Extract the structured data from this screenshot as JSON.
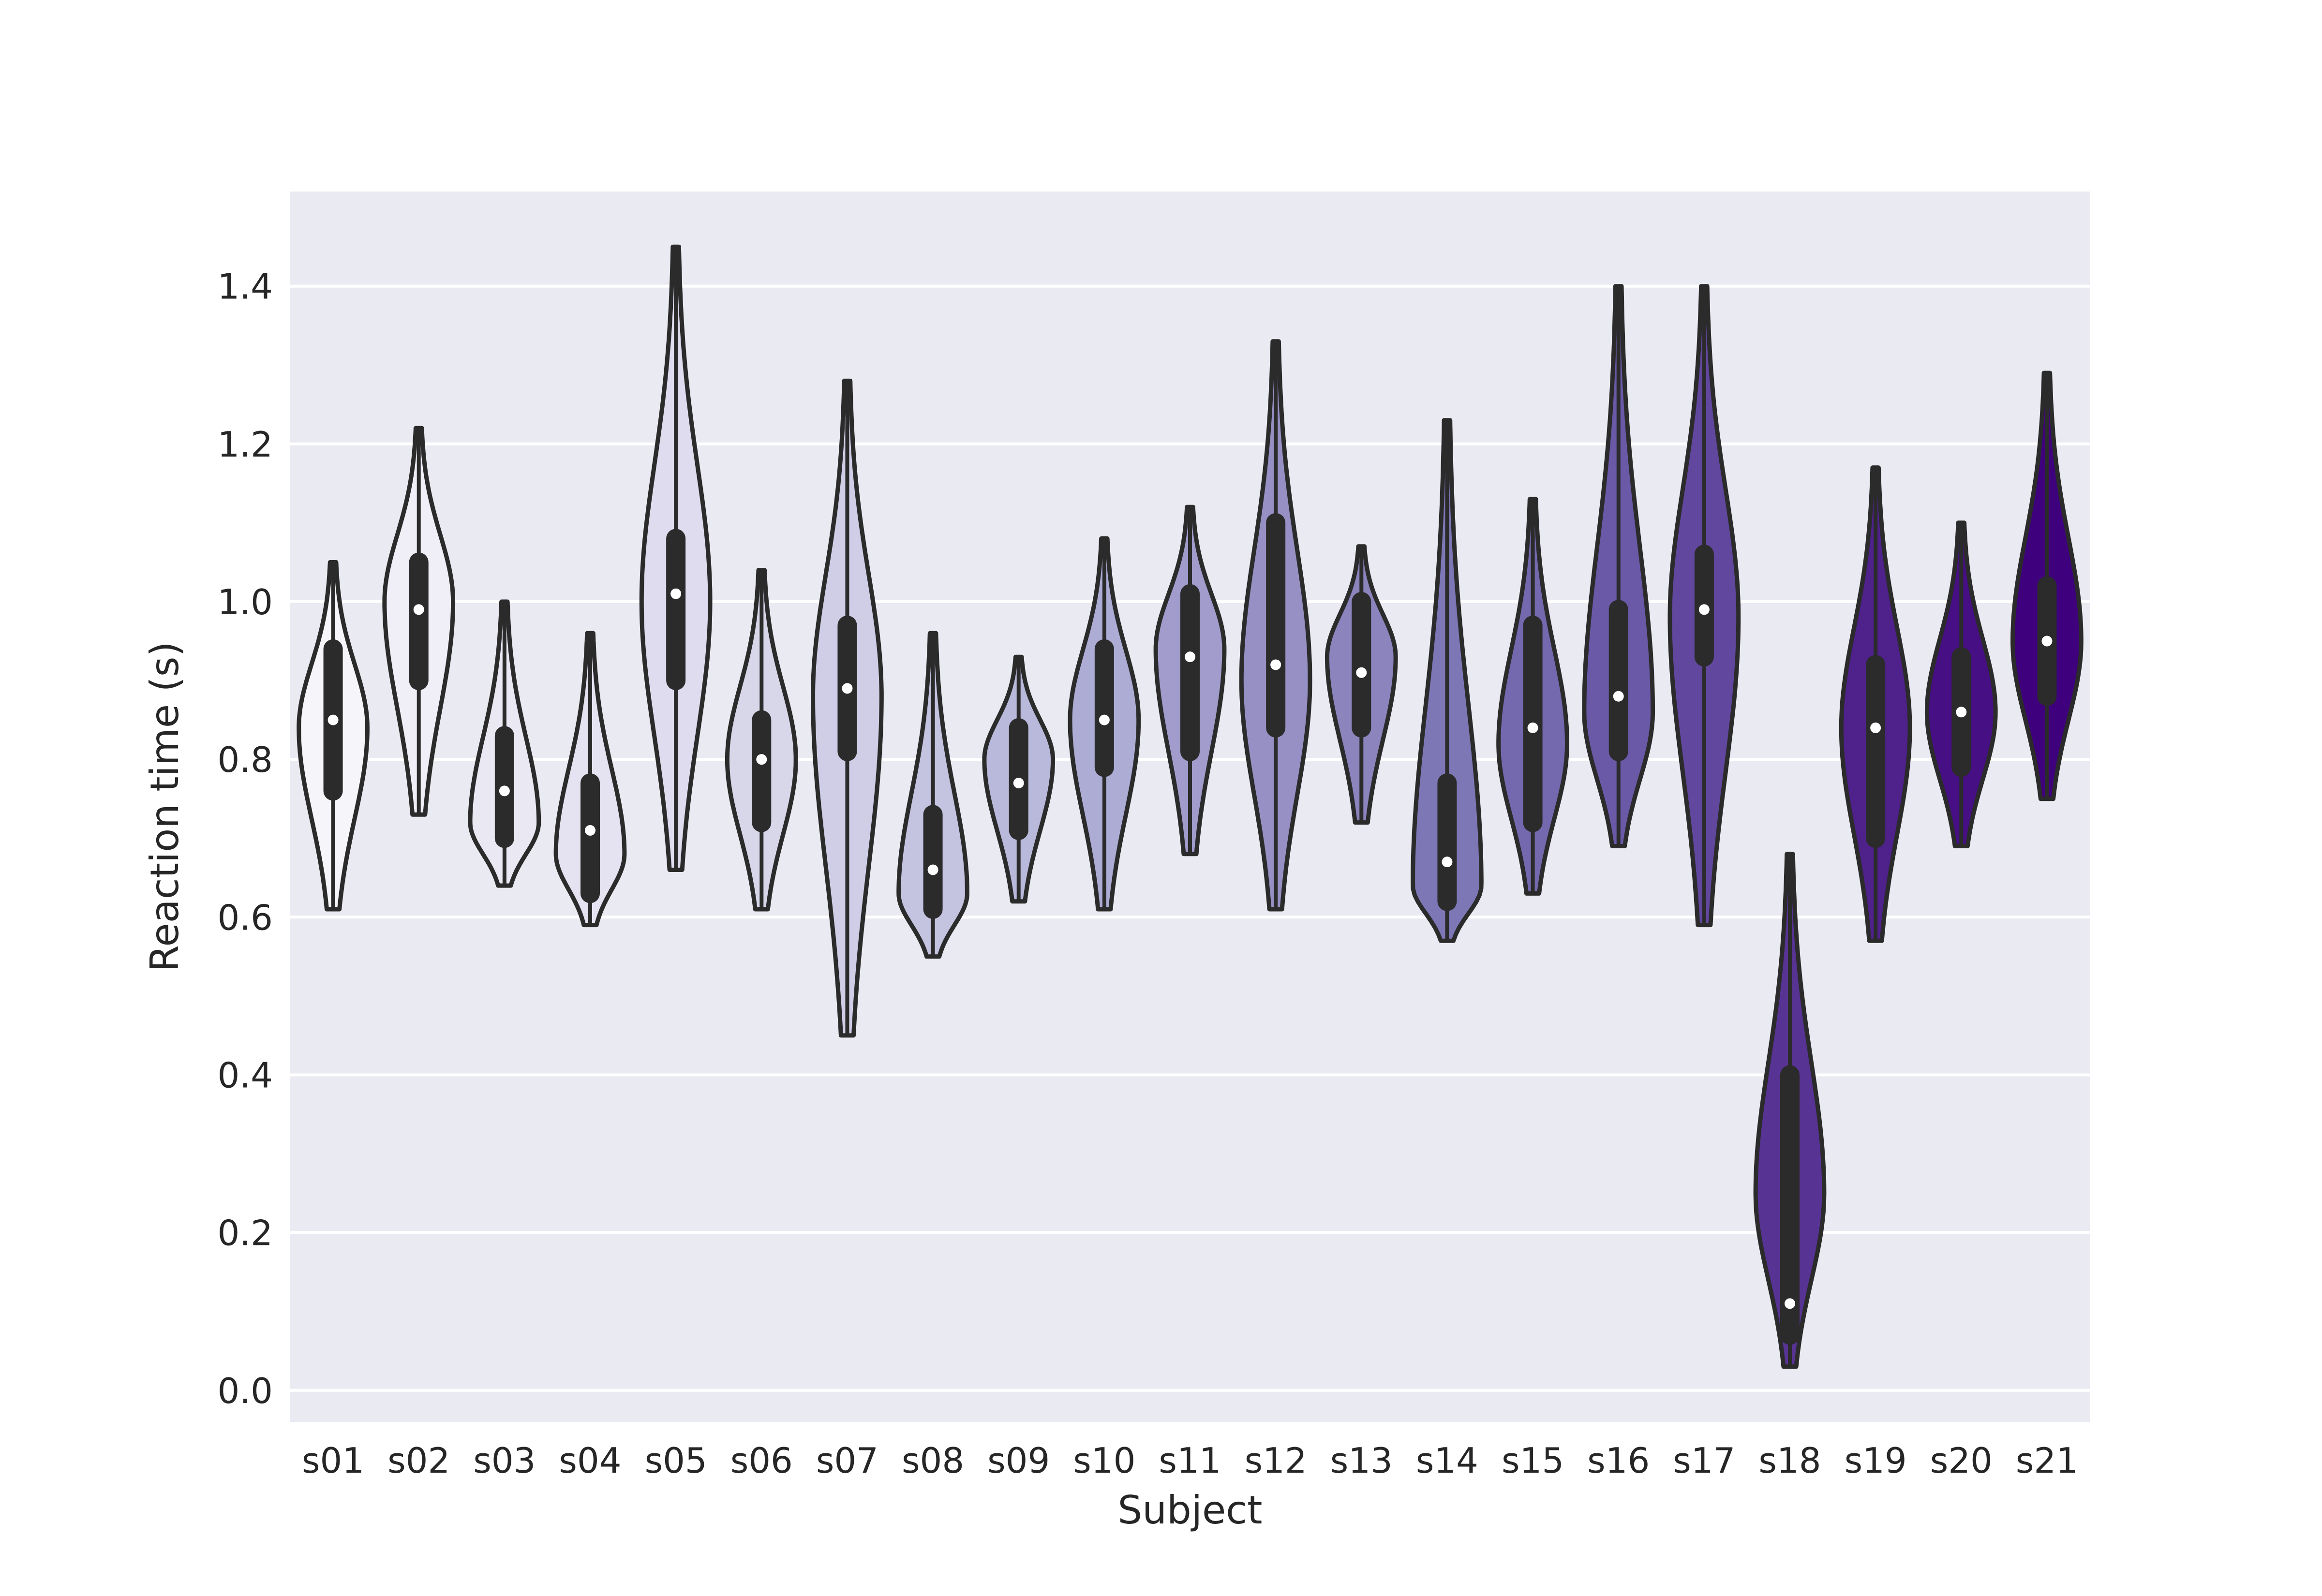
{
  "chart_data": {
    "type": "violin",
    "title": "",
    "xlabel": "Subject",
    "ylabel": "Reaction time (s)",
    "ylim": [
      -0.04,
      1.52
    ],
    "yticks": [
      "0.0",
      "0.2",
      "0.4",
      "0.6",
      "0.8",
      "1.0",
      "1.2",
      "1.4"
    ],
    "grid": true,
    "categories": [
      "s01",
      "s02",
      "s03",
      "s04",
      "s05",
      "s06",
      "s07",
      "s08",
      "s09",
      "s10",
      "s11",
      "s12",
      "s13",
      "s14",
      "s15",
      "s16",
      "s17",
      "s18",
      "s19",
      "s20",
      "s21"
    ],
    "colors": [
      "#f6f5fa",
      "#f0eef7",
      "#eae8f3",
      "#e5e2f1",
      "#dedcee",
      "#d8d7ea",
      "#cfcee6",
      "#c4c3e0",
      "#b9b9db",
      "#acacd5",
      "#a19ccc",
      "#9690c4",
      "#8b84bd",
      "#7e77b6",
      "#7469ae",
      "#6a59a6",
      "#61479d",
      "#573394",
      "#4e218b",
      "#460f84",
      "#3f007d"
    ],
    "outline_color": "#2b2b2b",
    "background": "#eaeaf2",
    "series": [
      {
        "name": "s01",
        "min": 0.61,
        "q1": 0.76,
        "median": 0.85,
        "q3": 0.94,
        "max": 1.05,
        "mode": 0.84
      },
      {
        "name": "s02",
        "min": 0.73,
        "q1": 0.9,
        "median": 0.99,
        "q3": 1.05,
        "max": 1.22,
        "mode": 1.0
      },
      {
        "name": "s03",
        "min": 0.64,
        "q1": 0.7,
        "median": 0.76,
        "q3": 0.83,
        "max": 1.0,
        "mode": 0.72
      },
      {
        "name": "s04",
        "min": 0.59,
        "q1": 0.63,
        "median": 0.71,
        "q3": 0.77,
        "max": 0.96,
        "mode": 0.68
      },
      {
        "name": "s05",
        "min": 0.66,
        "q1": 0.9,
        "median": 1.01,
        "q3": 1.08,
        "max": 1.45,
        "mode": 1.0
      },
      {
        "name": "s06",
        "min": 0.61,
        "q1": 0.72,
        "median": 0.8,
        "q3": 0.85,
        "max": 1.04,
        "mode": 0.8
      },
      {
        "name": "s07",
        "min": 0.45,
        "q1": 0.81,
        "median": 0.89,
        "q3": 0.97,
        "max": 1.28,
        "mode": 0.88
      },
      {
        "name": "s08",
        "min": 0.55,
        "q1": 0.61,
        "median": 0.66,
        "q3": 0.73,
        "max": 0.96,
        "mode": 0.63
      },
      {
        "name": "s09",
        "min": 0.62,
        "q1": 0.71,
        "median": 0.77,
        "q3": 0.84,
        "max": 0.93,
        "mode": 0.8
      },
      {
        "name": "s10",
        "min": 0.61,
        "q1": 0.79,
        "median": 0.85,
        "q3": 0.94,
        "max": 1.08,
        "mode": 0.85
      },
      {
        "name": "s11",
        "min": 0.68,
        "q1": 0.81,
        "median": 0.93,
        "q3": 1.01,
        "max": 1.12,
        "mode": 0.94
      },
      {
        "name": "s12",
        "min": 0.61,
        "q1": 0.84,
        "median": 0.92,
        "q3": 1.1,
        "max": 1.33,
        "mode": 0.9
      },
      {
        "name": "s13",
        "min": 0.72,
        "q1": 0.84,
        "median": 0.91,
        "q3": 1.0,
        "max": 1.07,
        "mode": 0.93
      },
      {
        "name": "s14",
        "min": 0.57,
        "q1": 0.62,
        "median": 0.67,
        "q3": 0.77,
        "max": 1.23,
        "mode": 0.64
      },
      {
        "name": "s15",
        "min": 0.63,
        "q1": 0.72,
        "median": 0.84,
        "q3": 0.97,
        "max": 1.13,
        "mode": 0.82
      },
      {
        "name": "s16",
        "min": 0.69,
        "q1": 0.81,
        "median": 0.88,
        "q3": 0.99,
        "max": 1.4,
        "mode": 0.86
      },
      {
        "name": "s17",
        "min": 0.59,
        "q1": 0.93,
        "median": 0.99,
        "q3": 1.06,
        "max": 1.4,
        "mode": 0.98
      },
      {
        "name": "s18",
        "min": 0.03,
        "q1": 0.07,
        "median": 0.11,
        "q3": 0.4,
        "max": 0.68,
        "mode": 0.25
      },
      {
        "name": "s19",
        "min": 0.57,
        "q1": 0.7,
        "median": 0.84,
        "q3": 0.92,
        "max": 1.17,
        "mode": 0.84
      },
      {
        "name": "s20",
        "min": 0.69,
        "q1": 0.79,
        "median": 0.86,
        "q3": 0.93,
        "max": 1.1,
        "mode": 0.86
      },
      {
        "name": "s21",
        "min": 0.75,
        "q1": 0.88,
        "median": 0.95,
        "q3": 1.02,
        "max": 1.29,
        "mode": 0.95
      }
    ]
  }
}
